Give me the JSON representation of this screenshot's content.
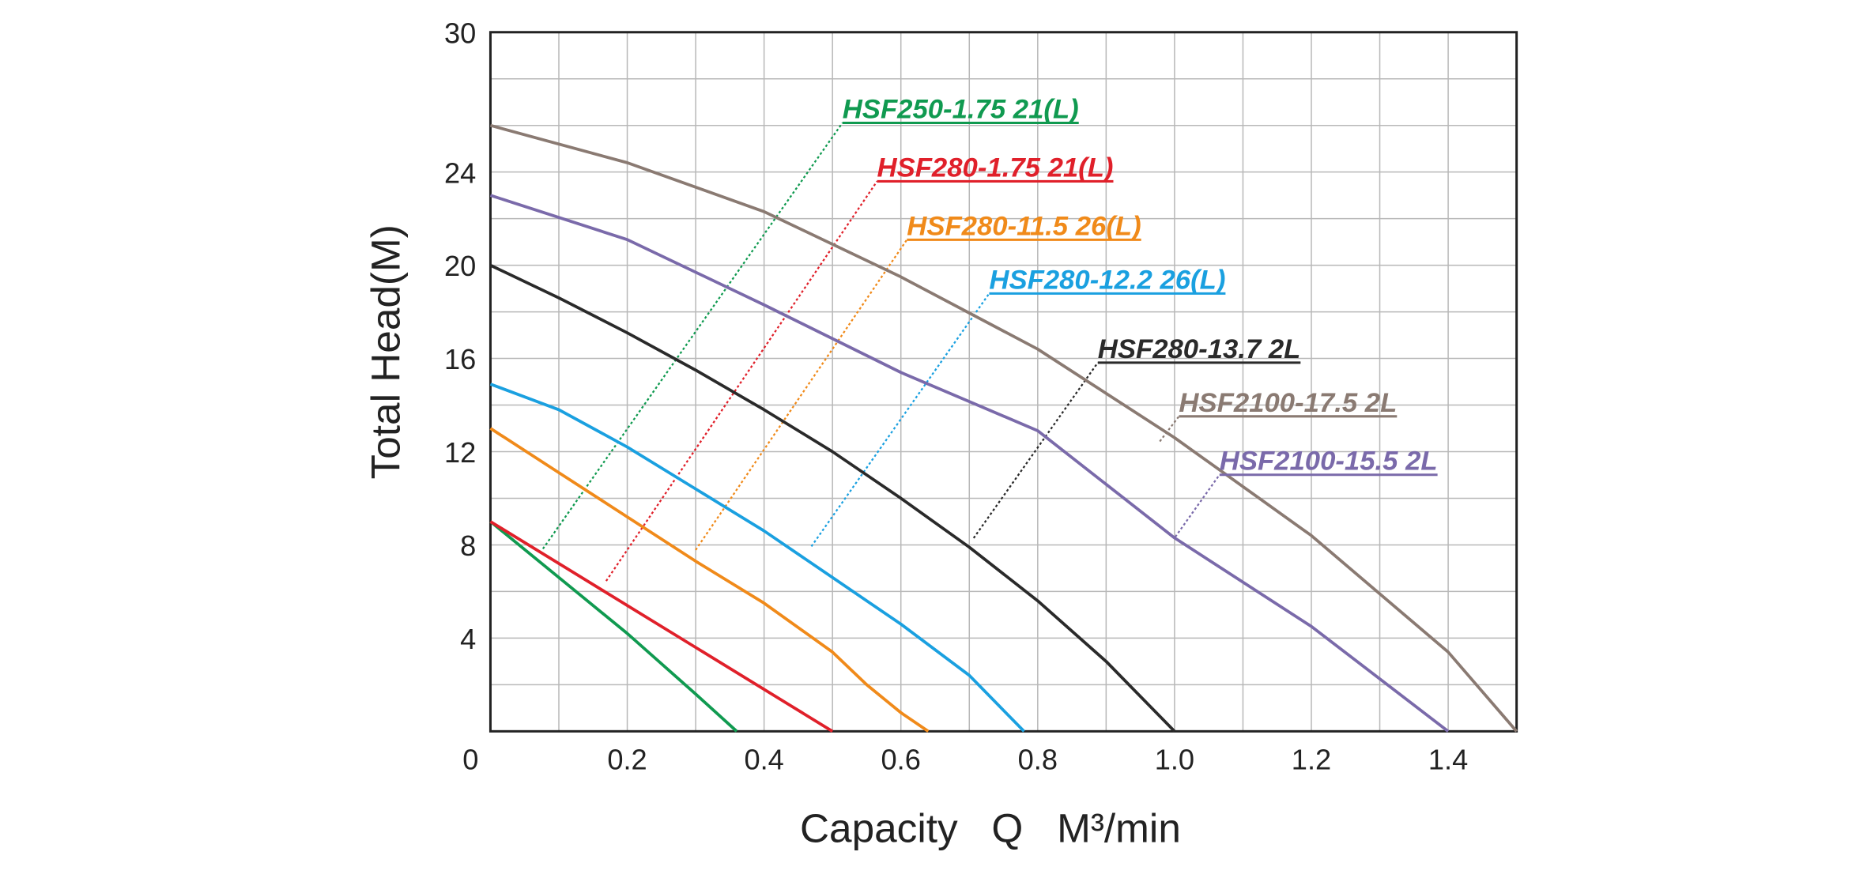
{
  "chart_data": {
    "type": "line",
    "xlabel": "Capacity   Q   M³/min",
    "ylabel": "Total  Head(M)",
    "xlim": [
      0,
      1.5
    ],
    "ylim": [
      0,
      30
    ],
    "xticks": [
      0,
      0.2,
      0.4,
      0.6,
      0.8,
      {
        "value": 1,
        "label": "1.0"
      },
      1.2,
      1.4
    ],
    "yticks": [
      4,
      8,
      12,
      16,
      20,
      24,
      30
    ],
    "xgrid": [
      0.1,
      0.2,
      0.3,
      0.4,
      0.5,
      0.6,
      0.7,
      0.8,
      0.9,
      1,
      1.1,
      1.2,
      1.3,
      1.4
    ],
    "ygrid": [
      2,
      4,
      6,
      8,
      10,
      12,
      14,
      16,
      18,
      20,
      22,
      24,
      26,
      28
    ],
    "grid": true,
    "series": [
      {
        "name": "HSF250-1.75 21(L)",
        "color": "#109a50",
        "x": [
          0,
          0.1,
          0.2,
          0.3,
          0.36
        ],
        "values": [
          9,
          6.6,
          4.2,
          1.6,
          0
        ]
      },
      {
        "name": "HSF280-1.75 21(L)",
        "color": "#e0202a",
        "x": [
          0,
          0.1,
          0.2,
          0.3,
          0.4,
          0.5
        ],
        "values": [
          9,
          7.2,
          5.4,
          3.6,
          1.8,
          0
        ]
      },
      {
        "name": "HSF280-11.5 26(L)",
        "color": "#f08a1a",
        "x": [
          0,
          0.1,
          0.2,
          0.3,
          0.4,
          0.5,
          0.55,
          0.6,
          0.64
        ],
        "values": [
          13,
          11.1,
          9.2,
          7.3,
          5.5,
          3.4,
          2,
          0.8,
          0
        ]
      },
      {
        "name": "HSF280-12.2 26(L)",
        "color": "#1aa0e0",
        "x": [
          0,
          0.1,
          0.2,
          0.3,
          0.4,
          0.5,
          0.6,
          0.7,
          0.78
        ],
        "values": [
          14.9,
          13.8,
          12.2,
          10.4,
          8.6,
          6.6,
          4.6,
          2.4,
          0
        ]
      },
      {
        "name": "HSF280-13.7 2L",
        "color": "#2a2a2a",
        "x": [
          0,
          0.1,
          0.2,
          0.3,
          0.4,
          0.5,
          0.6,
          0.7,
          0.8,
          0.9,
          1
        ],
        "values": [
          20,
          18.6,
          17.1,
          15.5,
          13.8,
          12,
          10,
          7.9,
          5.6,
          3,
          0
        ]
      },
      {
        "name": "HSF2100-17.5 2L",
        "color": "#8a7a72",
        "x": [
          0,
          0.2,
          0.4,
          0.6,
          0.8,
          1,
          1.2,
          1.4,
          1.5
        ],
        "values": [
          26,
          24.4,
          22.3,
          19.5,
          16.4,
          12.6,
          8.4,
          3.4,
          0
        ]
      },
      {
        "name": "HSF2100-15.5 2L",
        "color": "#7a6aaa",
        "x": [
          0,
          0.2,
          0.4,
          0.6,
          0.8,
          1,
          1.2,
          1.4
        ],
        "values": [
          23,
          21.1,
          18.3,
          15.4,
          12.9,
          8.3,
          4.5,
          0
        ]
      }
    ]
  }
}
